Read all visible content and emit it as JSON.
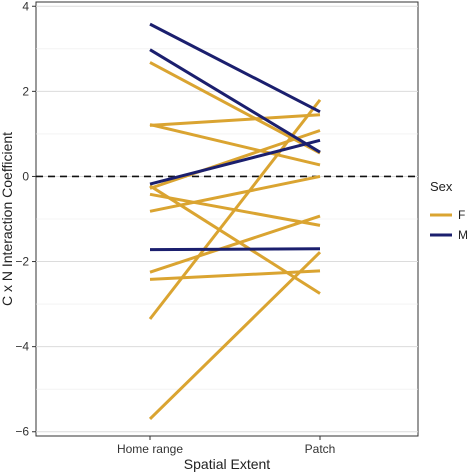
{
  "chart_data": {
    "type": "line",
    "xlabel": "Spatial Extent",
    "ylabel": "C x N Interaction Coefficient",
    "categories": [
      "Home range",
      "Patch"
    ],
    "ylim": [
      -6.1,
      4.1
    ],
    "yticks": [
      4,
      2,
      0,
      -2,
      -4,
      -6
    ],
    "ytick_labels": [
      "4",
      "2",
      "0",
      "−2",
      "−4",
      "−6"
    ],
    "reference_line": {
      "y": 0,
      "style": "dashed"
    },
    "grid": "horizontal",
    "legend": {
      "title": "Sex",
      "placement": "right",
      "entries": [
        {
          "label": "F",
          "color": "#DAA431"
        },
        {
          "label": "M",
          "color": "#1B1F6E"
        }
      ]
    },
    "series": [
      {
        "group": "F",
        "values": [
          2.68,
          0.55
        ]
      },
      {
        "group": "F",
        "values": [
          1.22,
          0.27
        ]
      },
      {
        "group": "F",
        "values": [
          1.2,
          1.45
        ]
      },
      {
        "group": "F",
        "values": [
          -0.28,
          1.08
        ]
      },
      {
        "group": "F",
        "values": [
          -0.82,
          0.0
        ]
      },
      {
        "group": "F",
        "values": [
          -0.42,
          -1.15
        ]
      },
      {
        "group": "F",
        "values": [
          -0.22,
          -2.75
        ]
      },
      {
        "group": "F",
        "values": [
          -2.25,
          -0.93
        ]
      },
      {
        "group": "F",
        "values": [
          -2.42,
          -2.22
        ]
      },
      {
        "group": "F",
        "values": [
          -3.35,
          1.8
        ]
      },
      {
        "group": "F",
        "values": [
          -5.7,
          -1.78
        ]
      },
      {
        "group": "M",
        "values": [
          3.58,
          1.52
        ]
      },
      {
        "group": "M",
        "values": [
          2.98,
          0.57
        ]
      },
      {
        "group": "M",
        "values": [
          -0.18,
          0.85
        ]
      },
      {
        "group": "M",
        "values": [
          -1.72,
          -1.7
        ]
      }
    ]
  }
}
